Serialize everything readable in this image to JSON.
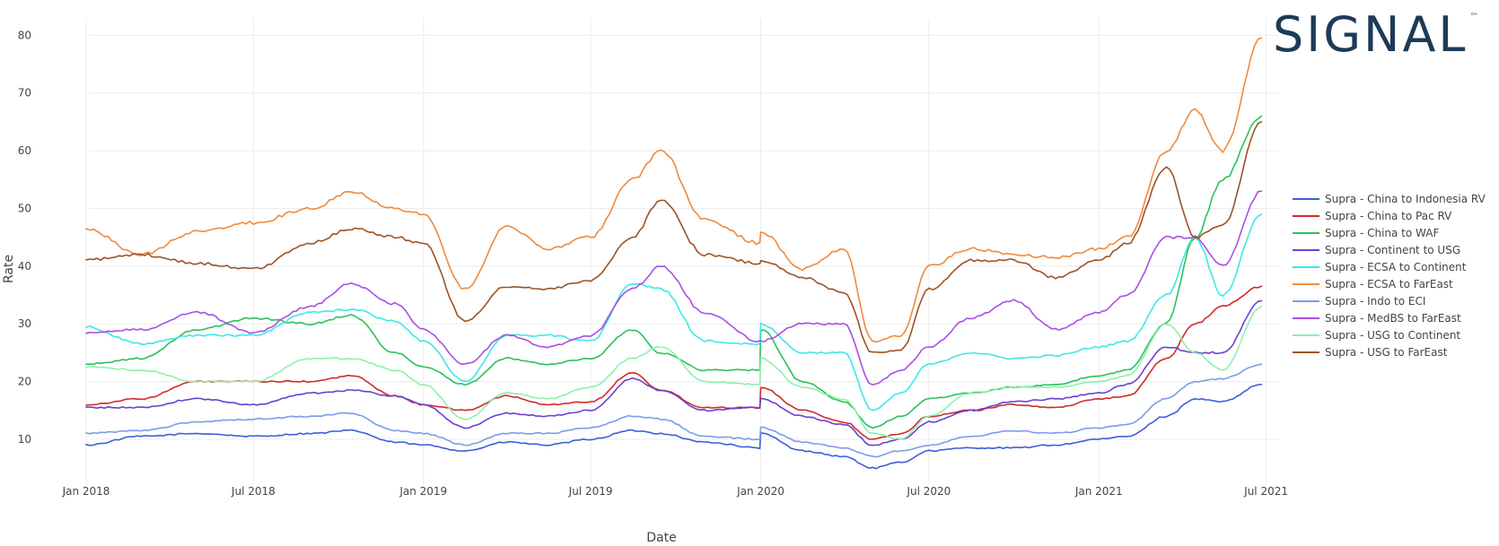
{
  "logo": {
    "text": "SIGNAL",
    "tm": "™",
    "color": "#1d3a57"
  },
  "chart_data": {
    "type": "line",
    "title": "",
    "xlabel": "Date",
    "ylabel": "Rate",
    "x_ticks": [
      "Jan 2018",
      "Jul 2018",
      "Jan 2019",
      "Jul 2019",
      "Jan 2020",
      "Jul 2020",
      "Jan 2021",
      "Jul 2021"
    ],
    "y_ticks": [
      10,
      20,
      30,
      40,
      50,
      60,
      70,
      80
    ],
    "xlim": [
      "2017-11-27",
      "2021-07-15"
    ],
    "ylim": [
      3,
      83
    ],
    "grid": true,
    "legend_position": "right",
    "x": [
      "2018-01-01",
      "2018-03-01",
      "2018-05-01",
      "2018-07-01",
      "2018-09-01",
      "2018-10-15",
      "2018-12-01",
      "2019-01-01",
      "2019-02-15",
      "2019-04-01",
      "2019-05-15",
      "2019-07-01",
      "2019-08-15",
      "2019-09-15",
      "2019-11-01",
      "2019-12-31",
      "2020-01-01",
      "2020-02-15",
      "2020-03-31",
      "2020-05-01",
      "2020-06-01",
      "2020-07-01",
      "2020-08-15",
      "2020-10-01",
      "2020-11-15",
      "2021-01-01",
      "2021-02-01",
      "2021-03-15",
      "2021-04-15",
      "2021-05-15",
      "2021-06-26"
    ],
    "series": [
      {
        "name": "Supra - China to Indonesia RV",
        "color": "#3c5fd9",
        "values": [
          9,
          10.5,
          11,
          10.5,
          11,
          11.5,
          9.5,
          9,
          8,
          9.5,
          9,
          10,
          11.5,
          11,
          9.5,
          8.5,
          11,
          8,
          7,
          5,
          6,
          8,
          8.5,
          8.5,
          9,
          10,
          10.5,
          14,
          17,
          16.5,
          19.5
        ]
      },
      {
        "name": "Supra - China to Pac RV",
        "color": "#d12a2a",
        "values": [
          16,
          17,
          20,
          20,
          20,
          21,
          17.5,
          16,
          15,
          17.5,
          16,
          16.5,
          21.5,
          18.5,
          15.5,
          15.5,
          19,
          15,
          13,
          10,
          11,
          14,
          15,
          16,
          15.5,
          17,
          17.5,
          24,
          30,
          33,
          36.5
        ]
      },
      {
        "name": "Supra - China to WAF",
        "color": "#2bc159",
        "values": [
          23,
          24,
          29,
          31,
          30,
          31.5,
          25,
          22.5,
          19.5,
          24,
          23,
          24,
          29,
          25,
          22,
          22,
          29,
          20,
          16.5,
          12,
          14,
          17,
          18,
          19,
          19.5,
          21,
          22,
          30,
          45,
          55,
          66
        ]
      },
      {
        "name": "Supra - Continent to USG",
        "color": "#6b3fd3",
        "values": [
          15.5,
          15.5,
          17,
          16,
          18,
          18.5,
          17.5,
          16,
          12,
          14.5,
          14,
          15,
          20.5,
          18.5,
          15,
          15.5,
          17,
          14,
          12.5,
          9,
          10,
          13,
          15,
          16.5,
          17,
          18,
          19.5,
          26,
          25,
          25,
          34
        ]
      },
      {
        "name": "Supra - ECSA to Continent",
        "color": "#3de7e7",
        "values": [
          29.5,
          26.5,
          28,
          28,
          32,
          32.5,
          30.5,
          27,
          20,
          28,
          28,
          27,
          37,
          36,
          27,
          26.5,
          30,
          25,
          25,
          15,
          18,
          23,
          25,
          24,
          24.5,
          26,
          27,
          35,
          45,
          35,
          49
        ]
      },
      {
        "name": "Supra - ECSA to FarEast",
        "color": "#ef8a3c",
        "values": [
          46.5,
          42,
          46,
          47.5,
          50,
          53,
          50,
          49,
          36,
          47,
          43,
          45,
          55,
          60,
          48,
          44,
          46,
          39.5,
          43,
          27,
          28,
          40,
          43,
          42,
          41.5,
          43,
          45,
          60,
          67,
          60,
          79.5
        ]
      },
      {
        "name": "Supra - Indo to ECI",
        "color": "#7b9ce8",
        "values": [
          11,
          11.5,
          13,
          13.5,
          14,
          14.5,
          11.5,
          11,
          9,
          11,
          11,
          12,
          14,
          13.5,
          10.5,
          10,
          12,
          9.5,
          8.5,
          7,
          8,
          9,
          10.5,
          11.5,
          11,
          12,
          12.5,
          17,
          20,
          20.5,
          23
        ]
      },
      {
        "name": "Supra - MedBS to FarEast",
        "color": "#a94ee8",
        "values": [
          28.5,
          29,
          32,
          28.5,
          33,
          37,
          33.5,
          29,
          23,
          28,
          26,
          28,
          36,
          40,
          32,
          27,
          27,
          30,
          30,
          19.5,
          22,
          26,
          31,
          34,
          29,
          32,
          35,
          45,
          45,
          40,
          53
        ]
      },
      {
        "name": "Supra - USG to Continent",
        "color": "#8ef0ac",
        "values": [
          22.5,
          22,
          20,
          20,
          24,
          24,
          22,
          19.5,
          13.5,
          18,
          17,
          19,
          24,
          26,
          20,
          19.5,
          24,
          19,
          17,
          11,
          10,
          14,
          18,
          19,
          19,
          20,
          21,
          30,
          25,
          22,
          33
        ]
      },
      {
        "name": "Supra - USG to FarEast",
        "color": "#9c5325",
        "values": [
          41,
          42,
          40.5,
          39.5,
          44,
          46.5,
          45,
          44,
          30.5,
          36.5,
          36,
          37.5,
          45,
          51.5,
          42,
          40.5,
          41,
          38,
          35.5,
          25,
          25.5,
          36,
          41,
          41,
          38,
          41,
          44,
          57,
          45,
          47,
          65
        ]
      }
    ]
  }
}
